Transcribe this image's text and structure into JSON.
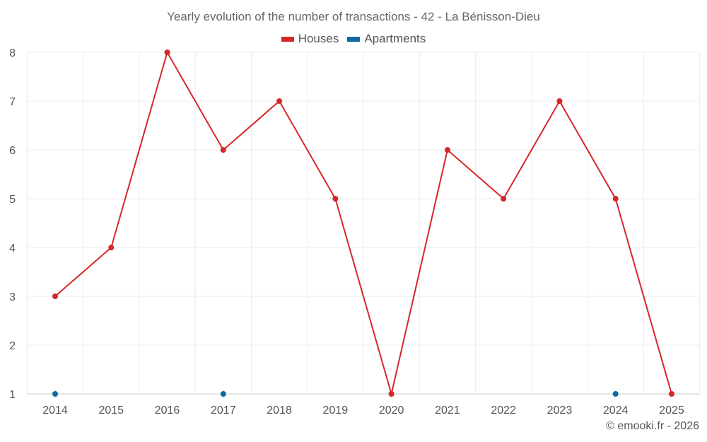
{
  "chart_data": {
    "type": "line",
    "title": "Yearly evolution of the number of transactions - 42 - La Bénisson-Dieu",
    "x": [
      "2014",
      "2015",
      "2016",
      "2017",
      "2018",
      "2019",
      "2020",
      "2021",
      "2022",
      "2023",
      "2024",
      "2025"
    ],
    "ylim": [
      1,
      8
    ],
    "yticks": [
      1,
      2,
      3,
      4,
      5,
      6,
      7,
      8
    ],
    "grid": true,
    "legend_position": "top-center",
    "series": [
      {
        "name": "Houses",
        "color": "#d62728",
        "values": [
          3,
          4,
          8,
          6,
          7,
          5,
          1,
          6,
          5,
          7,
          5,
          1
        ]
      },
      {
        "name": "Apartments",
        "color": "#0b6aa2",
        "values": [
          1,
          null,
          null,
          1,
          null,
          null,
          null,
          null,
          null,
          null,
          1,
          null
        ]
      }
    ]
  },
  "credit": "© emooki.fr - 2026"
}
